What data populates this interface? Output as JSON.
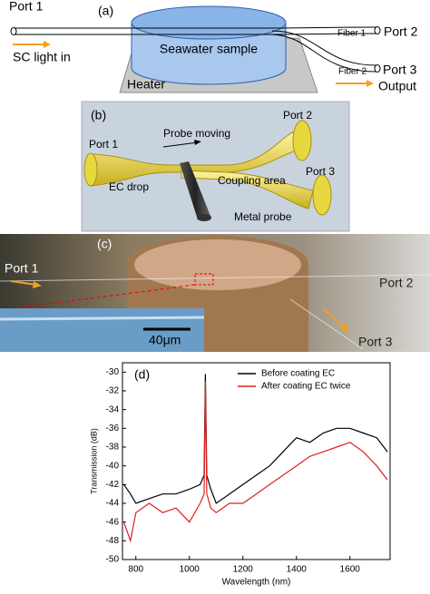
{
  "panel_a": {
    "label": "(a)",
    "port1": "Port 1",
    "sc_light": "SC light in",
    "sample": "Seawater sample",
    "heater": "Heater",
    "fiber1": "Fiber 1",
    "port2": "Port 2",
    "fiber2": "Fiber 2",
    "port3": "Port 3",
    "output": "Output"
  },
  "panel_b": {
    "label": "(b)",
    "port1": "Port 1",
    "probe_moving": "Probe moving",
    "port2": "Port 2",
    "port3": "Port 3",
    "ec_drop": "EC drop",
    "coupling_area": "Coupling area",
    "metal_probe": "Metal probe"
  },
  "panel_c": {
    "label": "(c)",
    "port1": "Port 1",
    "port2": "Port 2",
    "port3": "Port 3",
    "scale_bar": "40μm"
  },
  "chart_data": {
    "type": "line",
    "label": "(d)",
    "x_label": "Wavelength (nm)",
    "y_label": "Transmission (dB)",
    "x": [
      755,
      780,
      800,
      850,
      900,
      950,
      1000,
      1040,
      1055,
      1060,
      1065,
      1080,
      1100,
      1150,
      1200,
      1250,
      1300,
      1350,
      1400,
      1450,
      1500,
      1550,
      1600,
      1650,
      1700,
      1740
    ],
    "series": [
      {
        "name": "Before coating EC",
        "color": "#000000",
        "values": [
          -42,
          -43,
          -44,
          -43.5,
          -43,
          -43,
          -42.5,
          -42,
          -41,
          -30.2,
          -41,
          -42.5,
          -44,
          -43,
          -42,
          -41,
          -40,
          -38.5,
          -37,
          -37.5,
          -36.5,
          -36,
          -36,
          -36.5,
          -37,
          -38.5
        ]
      },
      {
        "name": "After coating EC twice",
        "color": "#e02020",
        "values": [
          -46,
          -48,
          -45,
          -44,
          -45,
          -44.5,
          -46,
          -44,
          -43,
          -31,
          -43,
          -44.5,
          -45,
          -44,
          -44,
          -43,
          -42,
          -41,
          -40,
          -39,
          -38.5,
          -38,
          -37.5,
          -38.5,
          -40,
          -41.5
        ]
      }
    ],
    "xlim": [
      750,
      1750
    ],
    "ylim": [
      -50,
      -29
    ],
    "xticks": [
      800,
      1000,
      1200,
      1400,
      1600
    ],
    "yticks": [
      -30,
      -32,
      -34,
      -36,
      -38,
      -40,
      -42,
      -44,
      -46,
      -48,
      -50
    ],
    "legend": "upper right"
  }
}
